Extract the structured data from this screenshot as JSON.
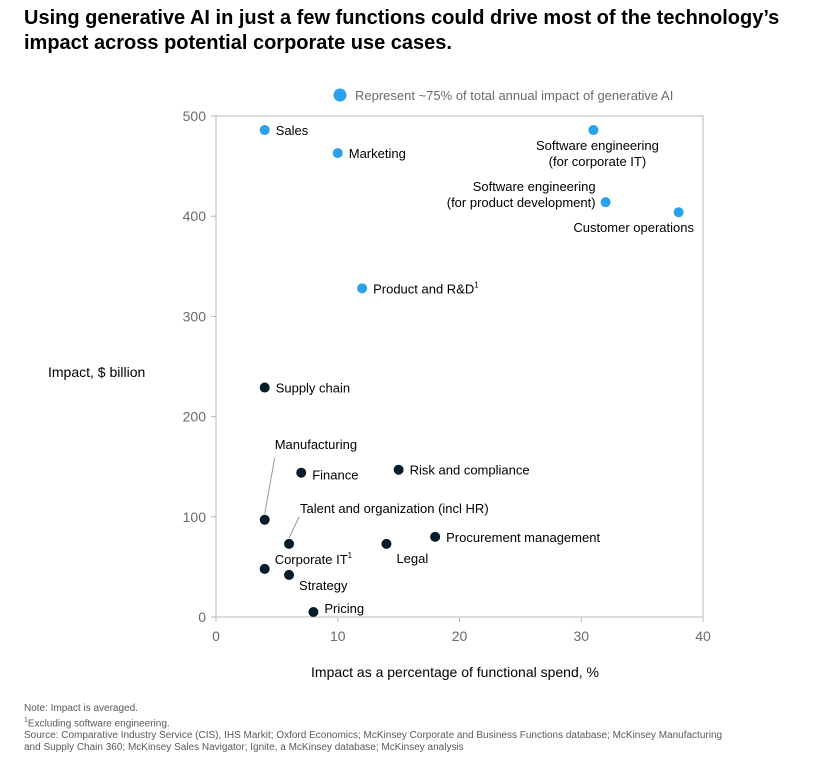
{
  "title": "Using generative AI in just a few functions could drive most of the technology’s impact across potential corporate use cases.",
  "chart_data": {
    "type": "scatter",
    "xlabel": "Impact as a percentage of functional spend, %",
    "ylabel": "Impact, $ billion",
    "xlim": [
      0,
      40
    ],
    "ylim": [
      0,
      500
    ],
    "xticks": [
      "0",
      "10",
      "20",
      "30",
      "40"
    ],
    "yticks": [
      "0",
      "100",
      "200",
      "300",
      "400",
      "500"
    ],
    "grid": false,
    "legend": {
      "placement": "top-center",
      "label": "Represent ~75% of total annual impact of generative AI"
    },
    "colors": {
      "highlight": "#2aa1ec",
      "other": "#051c2c",
      "axis": "#b8b8b8",
      "tick_text": "#6b6b6b"
    },
    "points": [
      {
        "name": "Sales",
        "x": 4,
        "y": 486,
        "group": "highlight"
      },
      {
        "name": "Marketing",
        "x": 10,
        "y": 463,
        "group": "highlight"
      },
      {
        "name": "Software engineering (for corporate IT)",
        "label_lines": [
          "Software engineering",
          "(for corporate IT)"
        ],
        "x": 31,
        "y": 486,
        "group": "highlight"
      },
      {
        "name": "Software engineering (for product development)",
        "label_lines": [
          "Software engineering",
          "(for product development)"
        ],
        "x": 32,
        "y": 414,
        "group": "highlight"
      },
      {
        "name": "Customer operations",
        "x": 38,
        "y": 404,
        "group": "highlight"
      },
      {
        "name": "Product and R&D",
        "label_suffix": "1",
        "x": 12,
        "y": 328,
        "group": "highlight"
      },
      {
        "name": "Supply chain",
        "x": 4,
        "y": 229,
        "group": "other"
      },
      {
        "name": "Manufacturing",
        "x": 4,
        "y": 97,
        "group": "other"
      },
      {
        "name": "Finance",
        "x": 7,
        "y": 144,
        "group": "other"
      },
      {
        "name": "Risk and compliance",
        "x": 15,
        "y": 147,
        "group": "other"
      },
      {
        "name": "Talent and organization (incl HR)",
        "x": 6,
        "y": 73,
        "group": "other"
      },
      {
        "name": "Legal",
        "x": 14,
        "y": 73,
        "group": "other"
      },
      {
        "name": "Procurement management",
        "x": 18,
        "y": 80,
        "group": "other"
      },
      {
        "name": "Corporate IT",
        "label_suffix": "1",
        "x": 4,
        "y": 48,
        "group": "other"
      },
      {
        "name": "Strategy",
        "x": 6,
        "y": 42,
        "group": "other"
      },
      {
        "name": "Pricing",
        "x": 8,
        "y": 5,
        "group": "other"
      }
    ]
  },
  "footnotes": {
    "note": "Note: Impact is averaged.",
    "dagger_mark": "1",
    "dagger_text": "Excluding software engineering.",
    "source_line1": "Source: Comparative Industry Service (CIS), IHS Markit; Oxford Economics; McKinsey Corporate and Business Functions database; McKinsey Manufacturing",
    "source_line2": "and Supply Chain 360; McKinsey Sales Navigator; Ignite, a McKinsey database; McKinsey analysis"
  }
}
